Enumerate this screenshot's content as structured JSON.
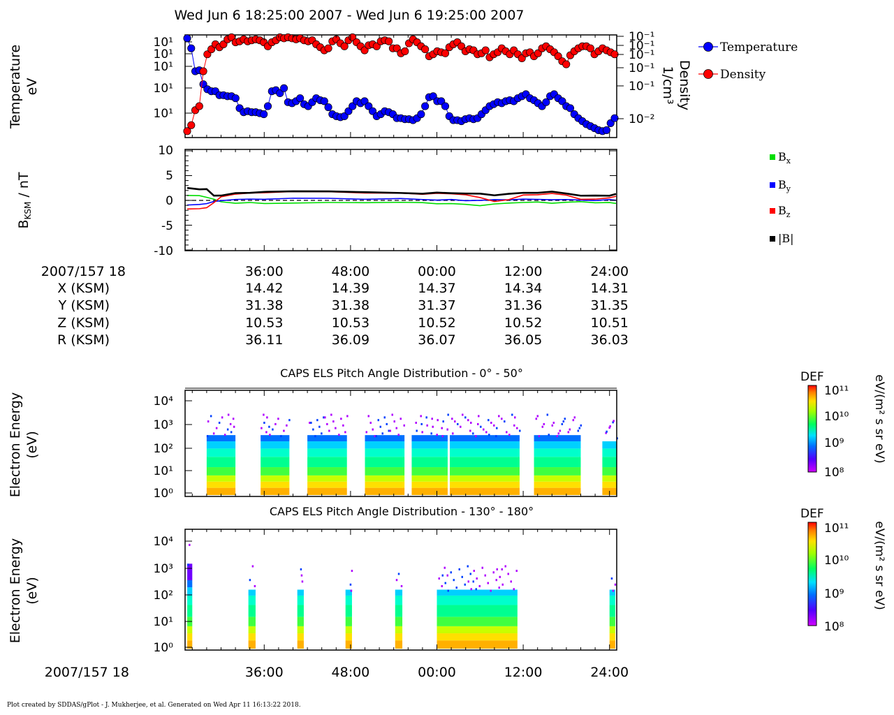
{
  "title": "Wed Jun 6 18:25:00 2007 - Wed Jun 6 19:25:00 2007",
  "footer": "Plot created by SDDAS/gPlot - J. Mukherjee, et al.  Generated on Wed Apr 11 16:13:22 2018.",
  "colors": {
    "temperature": "#0000ff",
    "density": "#ff0000",
    "bx": "#00dd00",
    "by": "#0000ff",
    "bz": "#ff0000",
    "bmag": "#000000"
  },
  "chart_data": [
    {
      "type": "scatter",
      "panel": "plasma-moments",
      "ylabel": "Temperature eV",
      "y2label": "Density 1/cm3",
      "ytick_labels": [
        "10¹",
        "10¹",
        "10¹",
        "10¹",
        "10¹",
        "10¹"
      ],
      "y2tick_labels": [
        "10⁻¹",
        "10⁻¹",
        "10⁻¹",
        "10⁻¹",
        "10⁻¹",
        "10⁻²"
      ],
      "xlim": [
        25,
        85
      ],
      "legend": "right",
      "series": [
        {
          "name": "Temperature",
          "values_relative": [
            0.98,
            0.88,
            0.65,
            0.66,
            0.52,
            0.47,
            0.45,
            0.45,
            0.41,
            0.41,
            0.4,
            0.4,
            0.38,
            0.28,
            0.24,
            0.25,
            0.24,
            0.24,
            0.23,
            0.22,
            0.3,
            0.45,
            0.46,
            0.43,
            0.48,
            0.34,
            0.33,
            0.35,
            0.38,
            0.32,
            0.3,
            0.34,
            0.38,
            0.36,
            0.35,
            0.29,
            0.22,
            0.2,
            0.19,
            0.2,
            0.25,
            0.3,
            0.35,
            0.33,
            0.35,
            0.3,
            0.25,
            0.2,
            0.22,
            0.25,
            0.24,
            0.22,
            0.18,
            0.18,
            0.17,
            0.17,
            0.16,
            0.18,
            0.22,
            0.3,
            0.39,
            0.4,
            0.35,
            0.35,
            0.3,
            0.2,
            0.16,
            0.16,
            0.15,
            0.17,
            0.18,
            0.17,
            0.18,
            0.22,
            0.26,
            0.3,
            0.32,
            0.34,
            0.33,
            0.35,
            0.36,
            0.35,
            0.38,
            0.4,
            0.42,
            0.38,
            0.36,
            0.33,
            0.3,
            0.34,
            0.4,
            0.42,
            0.38,
            0.35,
            0.3,
            0.28,
            0.22,
            0.18,
            0.15,
            0.12,
            0.1,
            0.08,
            0.06,
            0.05,
            0.06,
            0.13,
            0.18
          ]
        },
        {
          "name": "Density",
          "values_relative": [
            0.05,
            0.11,
            0.26,
            0.3,
            0.65,
            0.82,
            0.87,
            0.92,
            0.89,
            0.92,
            0.97,
            0.99,
            0.94,
            0.95,
            0.97,
            0.95,
            0.96,
            0.97,
            0.96,
            0.94,
            0.9,
            0.94,
            0.96,
            0.99,
            0.98,
            0.99,
            0.98,
            0.97,
            0.98,
            0.96,
            0.95,
            0.96,
            0.92,
            0.89,
            0.86,
            0.88,
            0.95,
            0.97,
            0.93,
            0.9,
            0.96,
            0.99,
            0.94,
            0.9,
            0.86,
            0.91,
            0.92,
            0.9,
            0.95,
            0.96,
            0.95,
            0.88,
            0.88,
            0.83,
            0.85,
            0.93,
            0.97,
            0.94,
            0.9,
            0.87,
            0.8,
            0.82,
            0.85,
            0.84,
            0.83,
            0.89,
            0.92,
            0.94,
            0.9,
            0.85,
            0.87,
            0.86,
            0.82,
            0.83,
            0.86,
            0.79,
            0.82,
            0.84,
            0.88,
            0.85,
            0.82,
            0.86,
            0.82,
            0.78,
            0.83,
            0.84,
            0.8,
            0.83,
            0.88,
            0.9,
            0.87,
            0.84,
            0.8,
            0.75,
            0.72,
            0.81,
            0.85,
            0.88,
            0.9,
            0.9,
            0.88,
            0.82,
            0.85,
            0.88,
            0.86,
            0.84,
            0.82
          ]
        }
      ]
    },
    {
      "type": "line",
      "panel": "magnetic-field",
      "ylabel": "BKSM / nT",
      "ylim": [
        -10,
        10
      ],
      "yticks": [
        "10",
        "5",
        "0",
        "-5",
        "-10"
      ],
      "xlim": [
        25,
        85
      ],
      "series": [
        {
          "name": "Bx",
          "label": "B",
          "sub": "x",
          "x": [
            25,
            27,
            28,
            29,
            30,
            32,
            34,
            36,
            40,
            45,
            50,
            55,
            58,
            60,
            62,
            64,
            66,
            68,
            70,
            72,
            74,
            76,
            78,
            80,
            82,
            84,
            85
          ],
          "values": [
            1.0,
            0.9,
            0.7,
            0.2,
            -0.3,
            -0.5,
            -0.5,
            -0.6,
            -0.5,
            -0.5,
            -0.4,
            -0.4,
            -0.5,
            -0.6,
            -0.7,
            -0.8,
            -1.0,
            -0.8,
            -0.5,
            -0.4,
            -0.4,
            -0.5,
            -0.4,
            -0.3,
            -0.4,
            -0.5,
            -0.6
          ]
        },
        {
          "name": "By",
          "label": "B",
          "sub": "y",
          "x": [
            25,
            27,
            28,
            29,
            30,
            32,
            34,
            36,
            40,
            45,
            50,
            55,
            58,
            60,
            62,
            64,
            66,
            68,
            70,
            72,
            74,
            76,
            78,
            80,
            82,
            84,
            85
          ],
          "values": [
            -1.0,
            -0.8,
            -0.6,
            -0.3,
            0.0,
            0.2,
            0.2,
            0.3,
            0.4,
            0.4,
            0.3,
            0.3,
            0.2,
            0.1,
            0.1,
            0.0,
            0.0,
            0.1,
            0.2,
            0.2,
            0.2,
            0.2,
            0.1,
            0.1,
            0.0,
            0.1,
            0.1
          ]
        },
        {
          "name": "Bz",
          "label": "B",
          "sub": "z",
          "x": [
            25,
            27,
            28,
            29,
            30,
            32,
            34,
            36,
            40,
            45,
            50,
            55,
            58,
            60,
            62,
            64,
            66,
            68,
            70,
            72,
            74,
            76,
            78,
            80,
            82,
            84,
            85
          ],
          "values": [
            -1.8,
            -1.6,
            -1.5,
            -0.5,
            0.8,
            1.2,
            1.5,
            1.6,
            1.7,
            1.8,
            1.5,
            1.4,
            1.3,
            1.4,
            1.3,
            1.2,
            0.5,
            -0.2,
            0.2,
            1.0,
            1.2,
            1.4,
            1.0,
            0.3,
            0.2,
            0.5,
            0.9
          ]
        },
        {
          "name": "|B|",
          "label": "|B|",
          "sub": "",
          "x": [
            25,
            27,
            28,
            29,
            30,
            32,
            34,
            36,
            40,
            45,
            50,
            55,
            58,
            60,
            62,
            64,
            66,
            68,
            70,
            72,
            74,
            76,
            78,
            80,
            82,
            84,
            85
          ],
          "values": [
            2.5,
            2.3,
            2.2,
            1.0,
            1.0,
            1.4,
            1.6,
            1.7,
            1.8,
            1.9,
            1.6,
            1.5,
            1.4,
            1.5,
            1.5,
            1.4,
            1.3,
            1.1,
            1.3,
            1.5,
            1.6,
            1.7,
            1.4,
            1.0,
            0.9,
            1.0,
            1.3
          ]
        }
      ]
    },
    {
      "type": "heatmap",
      "panel": "els-pad-0-50",
      "title": "CAPS ELS Pitch Angle Distribution - 0° - 50°",
      "ylabel": "Electron Energy (eV)",
      "ytick_labels": [
        "10⁴",
        "10³",
        "10²",
        "10¹",
        "10⁰"
      ],
      "xlim": [
        25,
        85
      ],
      "colorbar": {
        "label": "DEF",
        "units": "eV/(m² s sr eV)",
        "ticks": [
          "10¹¹",
          "10¹⁰",
          "10⁹",
          "10⁸"
        ]
      },
      "data_intervals": [
        [
          28,
          32
        ],
        [
          35.5,
          39.5
        ],
        [
          42,
          47.5
        ],
        [
          50,
          55.5
        ],
        [
          56.5,
          61.5
        ],
        [
          61.8,
          71.5
        ],
        [
          73.5,
          80
        ],
        [
          83,
          85
        ]
      ]
    },
    {
      "type": "heatmap",
      "panel": "els-pad-130-180",
      "title": "CAPS ELS Pitch Angle Distribution - 130° - 180°",
      "ylabel": "Electron Energy (eV)",
      "ytick_labels": [
        "10⁴",
        "10³",
        "10²",
        "10¹",
        "10⁰"
      ],
      "xlim": [
        25,
        85
      ],
      "colorbar": {
        "label": "DEF",
        "units": "eV/(m² s sr eV)",
        "ticks": [
          "10¹¹",
          "10¹⁰",
          "10⁹",
          "10⁸"
        ]
      },
      "data_intervals": [
        [
          25.3,
          26
        ],
        [
          33.8,
          34.8
        ],
        [
          40.6,
          41.5
        ],
        [
          47.3,
          48.2
        ],
        [
          54.2,
          55.2
        ],
        [
          60,
          71.2
        ],
        [
          84,
          84.8
        ]
      ]
    }
  ],
  "time_axis": {
    "start_label": "2007/157 18",
    "ticks": [
      "36:00",
      "48:00",
      "00:00",
      "12:00",
      "24:00"
    ],
    "rows": [
      {
        "label": "X (KSM)",
        "values": [
          "14.42",
          "14.39",
          "14.37",
          "14.34",
          "14.31"
        ]
      },
      {
        "label": "Y (KSM)",
        "values": [
          "31.38",
          "31.38",
          "31.37",
          "31.36",
          "31.35"
        ]
      },
      {
        "label": "Z (KSM)",
        "values": [
          "10.53",
          "10.53",
          "10.52",
          "10.52",
          "10.51"
        ]
      },
      {
        "label": "R (KSM)",
        "values": [
          "36.11",
          "36.09",
          "36.07",
          "36.05",
          "36.03"
        ]
      }
    ]
  },
  "labels": {
    "temp_axis_line1": "Temperature",
    "temp_axis_line2": "eV",
    "dens_axis_line1": "Density",
    "dens_axis_line2": "1/cm³",
    "b_axis": "B",
    "b_axis_sub": "KSM",
    "b_axis_rest": " / nT",
    "els_axis_line1": "Electron Energy",
    "els_axis_line2": "(eV)",
    "legend_temp": "Temperature",
    "legend_dens": "Density"
  }
}
